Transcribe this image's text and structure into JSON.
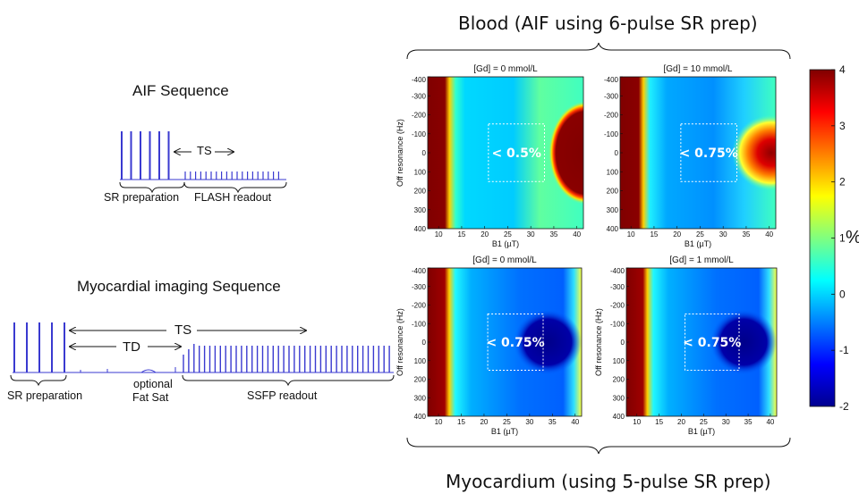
{
  "titles": {
    "blood": "Blood (AIF using 6-pulse SR prep)",
    "myocardium": "Myocardium (using 5-pulse SR prep)"
  },
  "aif_sequence": {
    "title": "AIF Sequence",
    "ts": "TS",
    "sr_preparation": "SR preparation",
    "readout": "FLASH readout"
  },
  "myo_sequence": {
    "title": "Myocardial imaging Sequence",
    "ts": "TS",
    "td": "TD",
    "sr_preparation": "SR preparation",
    "fat_sat_line1": "optional",
    "fat_sat_line2": "Fat Sat",
    "readout": "SSFP readout"
  },
  "panels": [
    {
      "title": "[Gd] = 0 mmol/L",
      "box_label": "< 0.5%",
      "xlabel": "B1 (µT)",
      "ylabel": "Off resonance (Hz)"
    },
    {
      "title": "[Gd] = 10 mmol/L",
      "box_label": "< 0.75%",
      "xlabel": "B1 (µT)",
      "ylabel": ""
    },
    {
      "title": "[Gd] = 0 mmol/L",
      "box_label": "< 0.75%",
      "xlabel": "B1 (µT)",
      "ylabel": "Off resonance (Hz)"
    },
    {
      "title": "[Gd] = 1 mmol/L",
      "box_label": "< 0.75%",
      "xlabel": "B1 (µT)",
      "ylabel": "Off resonance (Hz)"
    }
  ],
  "axes": {
    "x_ticks": [
      "10",
      "15",
      "20",
      "25",
      "30",
      "35",
      "40"
    ],
    "y_ticks": [
      "-400",
      "-300",
      "-200",
      "-100",
      "0",
      "100",
      "200",
      "300",
      "400"
    ]
  },
  "colorbar": {
    "ticks": [
      "4",
      "3",
      "2",
      "1",
      "0",
      "-1",
      "-2"
    ],
    "unit": "%",
    "min": -2,
    "max": 4,
    "colormap": "jet"
  }
}
